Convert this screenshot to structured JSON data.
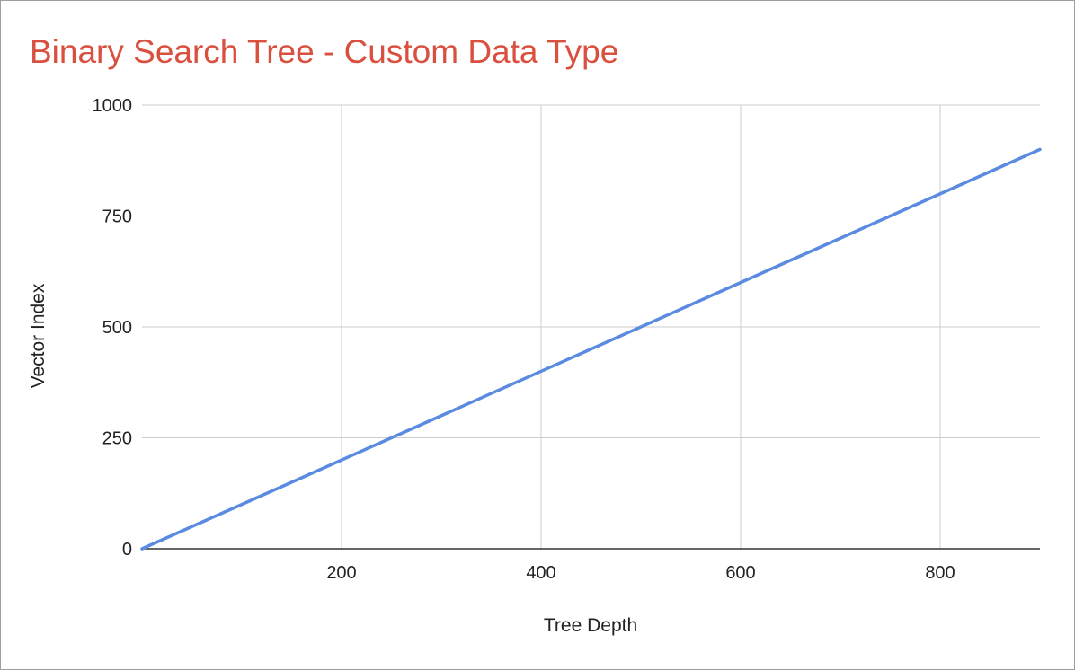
{
  "chart_data": {
    "type": "line",
    "title": "Binary Search Tree - Custom Data Type",
    "xlabel": "Tree Depth",
    "ylabel": "Vector Index",
    "xlim": [
      0,
      900
    ],
    "ylim": [
      0,
      1000
    ],
    "x_ticks": [
      200,
      400,
      600,
      800
    ],
    "y_ticks": [
      0,
      250,
      500,
      750,
      1000
    ],
    "grid": true,
    "legend": "none",
    "series": [
      {
        "x": [
          0,
          900
        ],
        "values": [
          0,
          900
        ],
        "color": "#5b8be0"
      }
    ],
    "colors": {
      "title": "#d9503f",
      "grid": "#cccccc",
      "axis": "#333333",
      "line": "#5b8be0"
    }
  }
}
